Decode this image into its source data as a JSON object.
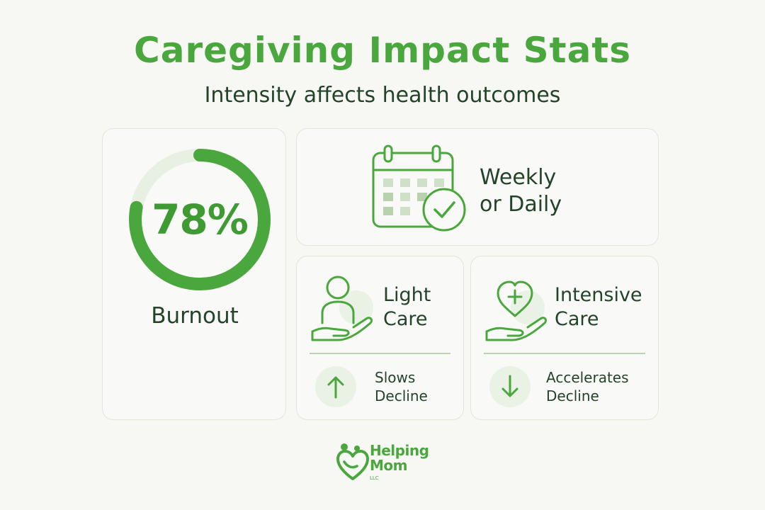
{
  "header": {
    "title": "Caregiving Impact Stats",
    "subtitle": "Intensity affects health outcomes"
  },
  "burnout_card": {
    "value": "78%",
    "fraction": 0.78,
    "label": "Burnout",
    "ring_color": "#4aa73d",
    "ring_track_color": "#e8efe3"
  },
  "frequency_card": {
    "icon": "calendar-check-icon",
    "line1": "Weekly",
    "line2": "or Daily"
  },
  "light_care_card": {
    "icon": "person-in-hand-icon",
    "label_line1": "Light",
    "label_line2": "Care",
    "effect_icon": "arrow-up-icon",
    "effect_line1": "Slows",
    "effect_line2": "Decline"
  },
  "intensive_care_card": {
    "icon": "heart-plus-in-hand-icon",
    "label_line1": "Intensive",
    "label_line2": "Care",
    "effect_icon": "arrow-down-icon",
    "effect_line1": "Accelerates",
    "effect_line2": "Decline"
  },
  "footer": {
    "logo_line1": "Helping",
    "logo_line2": "Mom",
    "logo_suffix": "LLC"
  },
  "colors": {
    "accent": "#4aa73d",
    "text_dark": "#24442a",
    "background": "#f7f7f4",
    "card_border": "#dfe8d8"
  }
}
